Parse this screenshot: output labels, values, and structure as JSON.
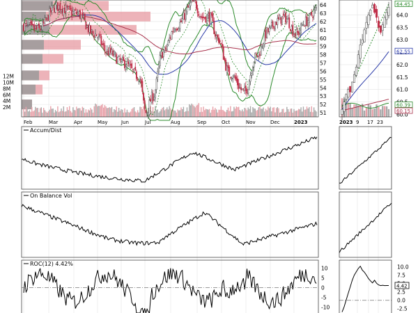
{
  "chart_data": [
    {
      "type": "candlestick",
      "panel": "price-main",
      "xaxis": {
        "labels": [
          "Feb",
          "Mar",
          "Apr",
          "May",
          "Jun",
          "Jul",
          "Aug",
          "Sep",
          "Oct",
          "Nov",
          "Dec",
          "2023"
        ]
      },
      "yaxis_price": {
        "ticks": [
          51,
          52,
          53,
          54,
          55,
          56,
          57,
          58,
          59,
          60,
          61,
          62,
          63,
          64
        ],
        "ylim": [
          50.5,
          64.6
        ]
      },
      "yaxis_volume": {
        "ticks": [
          "2M",
          "4M",
          "6M",
          "8M",
          "10M",
          "12M"
        ],
        "ylim": [
          0,
          13.5
        ]
      },
      "volume_by_price": [
        {
          "price": 63.9,
          "up": 4.5,
          "down": 12.5
        },
        {
          "price": 62.6,
          "up": 3.5,
          "down": 18.5
        },
        {
          "price": 61.0,
          "up": 4.0,
          "down": 16.5
        },
        {
          "price": 59.2,
          "up": 3.2,
          "down": 8.5
        },
        {
          "price": 57.5,
          "up": 3.0,
          "down": 6.0
        },
        {
          "price": 55.5,
          "up": 2.5,
          "down": 4.0
        },
        {
          "price": 53.8,
          "up": 2.0,
          "down": 3.0
        },
        {
          "price": 52.0,
          "up": 1.5,
          "down": 1.5
        }
      ],
      "series": [
        {
          "kind": "bollinger-upper",
          "color": "#2a8a2a"
        },
        {
          "kind": "bollinger-lower",
          "color": "#2a8a2a"
        },
        {
          "kind": "ma-short",
          "color": "#2a3aa8"
        },
        {
          "kind": "ma-long",
          "color": "#a8304a"
        },
        {
          "kind": "parabolic-sar",
          "color": "#2a8a2a"
        }
      ],
      "colors": {
        "up": "#555555",
        "down": "#c0304a",
        "vol_up": "#a8a8a8",
        "vol_down": "#e8a0a8"
      }
    },
    {
      "type": "candlestick",
      "panel": "price-zoom",
      "xaxis": {
        "labels": [
          "2023",
          "9",
          "17",
          "23"
        ]
      },
      "yaxis": {
        "ticks": [
          "64.0",
          "63.5",
          "63.0",
          "62.5",
          "62.0",
          "61.5",
          "61.0",
          "60.5",
          "60.0"
        ],
        "ylim": [
          59.9,
          64.6
        ]
      },
      "price_markers": [
        {
          "label": "64.45",
          "value": 64.45,
          "color": "#2a8a2a"
        },
        {
          "label": "62.55",
          "value": 62.55,
          "color": "#2a3aa8"
        },
        {
          "label": "60.39",
          "value": 60.39,
          "color": "#2a8a2a"
        },
        {
          "label": "60.15",
          "value": 60.15,
          "color": "#a8304a"
        }
      ]
    },
    {
      "type": "line",
      "panel": "accum-dist",
      "title": "Accum/Dist",
      "series": [
        {
          "name": "Accum/Dist",
          "color": "#000000"
        }
      ]
    },
    {
      "type": "line",
      "panel": "obv",
      "title": "On Balance Vol",
      "series": [
        {
          "name": "On Balance Vol",
          "color": "#000000"
        }
      ]
    },
    {
      "type": "line",
      "panel": "roc",
      "title": "ROC(12) 4.42%",
      "yaxis": {
        "ticks": [
          "10",
          "5",
          "0",
          "-5",
          "-10"
        ],
        "ylim": [
          -13,
          14
        ]
      },
      "zoom_yaxis": {
        "ticks": [
          "10.0",
          "7.5",
          "5.0",
          "2.5",
          "0.0",
          "-2.5"
        ],
        "ylim": [
          -3.8,
          12
        ]
      },
      "last_value_label": "4.42",
      "last_value": 4.42
    }
  ]
}
